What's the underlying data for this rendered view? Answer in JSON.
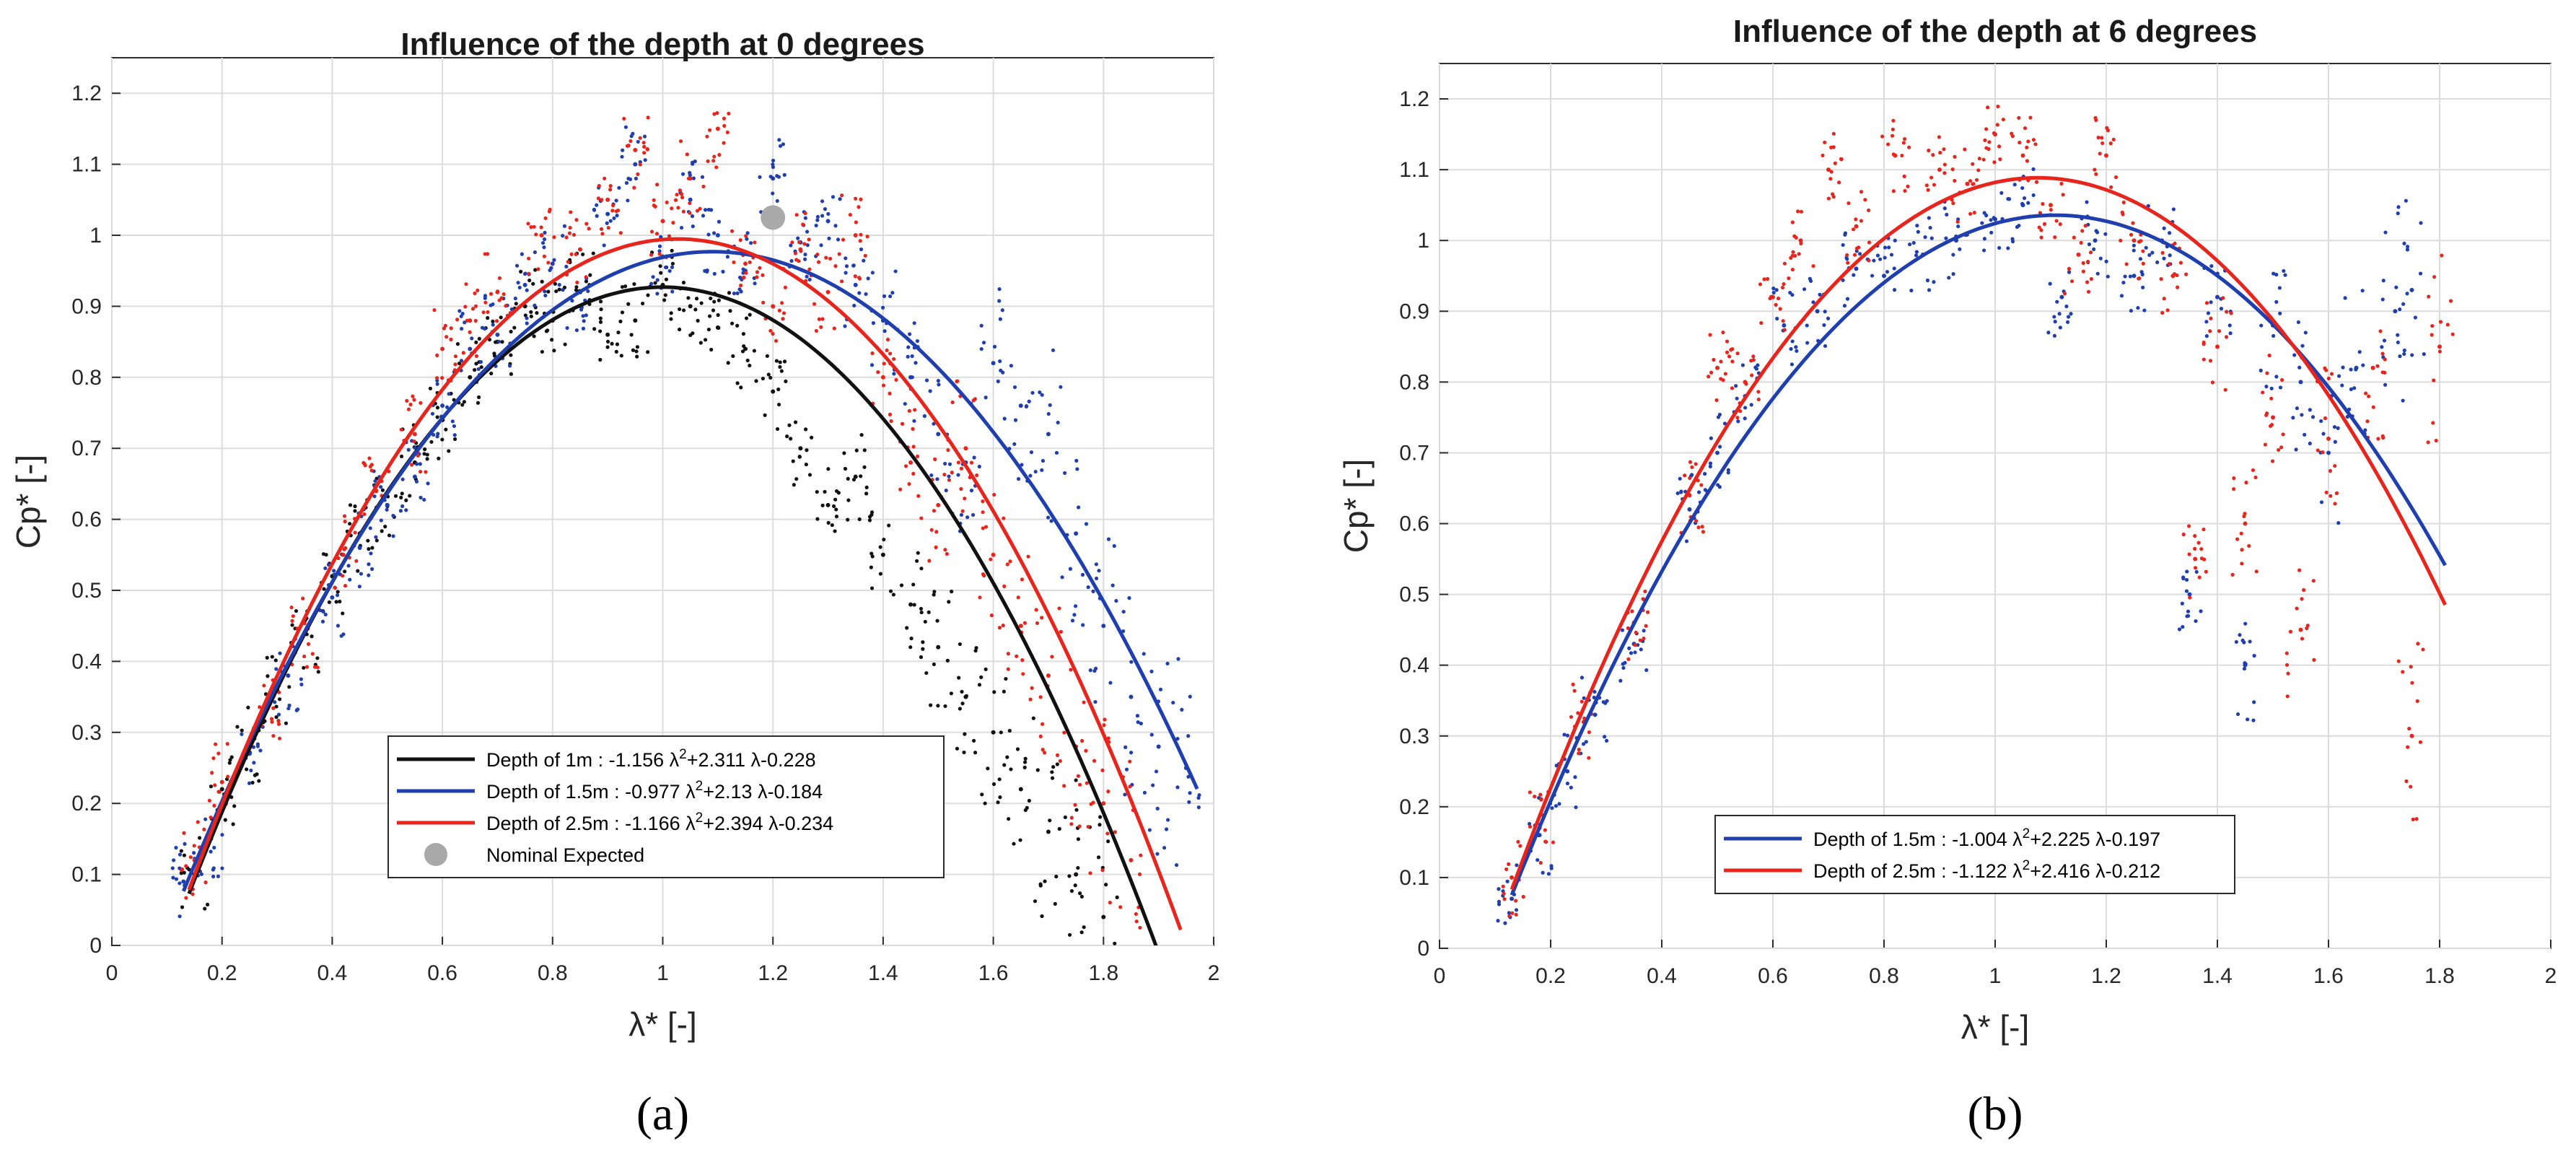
{
  "chart_data": [
    {
      "type": "scatter",
      "subfigure_label": "(a)",
      "title": "Influence of the depth at 0 degrees",
      "xlabel": "λ* [-]",
      "ylabel": "Cp* [-]",
      "xlim": [
        0,
        2
      ],
      "ylim": [
        0,
        1.25
      ],
      "xticks": [
        "0",
        "0.2",
        "0.4",
        "0.6",
        "0.8",
        "1",
        "1.2",
        "1.4",
        "1.6",
        "1.8",
        "2"
      ],
      "yticks": [
        "0",
        "0.1",
        "0.2",
        "0.3",
        "0.4",
        "0.5",
        "0.6",
        "0.7",
        "0.8",
        "0.9",
        "1",
        "1.1",
        "1.2"
      ],
      "grid": true,
      "legend_position": "bottom-right",
      "series": [
        {
          "name": "Depth of 1m",
          "label": "Depth of 1m : -1.156  λ²+2.311 λ-0.228",
          "color": "#111111",
          "fit": [
            -1.156,
            2.311,
            -0.228
          ],
          "x_range": [
            0.14,
            1.9
          ],
          "scatter": [
            [
              0.15,
              0.1
            ],
            [
              0.2,
              0.22
            ],
            [
              0.25,
              0.28
            ],
            [
              0.3,
              0.36
            ],
            [
              0.35,
              0.44
            ],
            [
              0.4,
              0.52
            ],
            [
              0.45,
              0.58
            ],
            [
              0.5,
              0.62
            ],
            [
              0.55,
              0.68
            ],
            [
              0.6,
              0.74
            ],
            [
              0.65,
              0.8
            ],
            [
              0.7,
              0.85
            ],
            [
              0.75,
              0.9
            ],
            [
              0.8,
              0.88
            ],
            [
              0.85,
              0.92
            ],
            [
              0.9,
              0.86
            ],
            [
              0.95,
              0.88
            ],
            [
              1.0,
              0.93
            ],
            [
              1.05,
              0.9
            ],
            [
              1.1,
              0.87
            ],
            [
              1.15,
              0.84
            ],
            [
              1.2,
              0.78
            ],
            [
              1.25,
              0.7
            ],
            [
              1.3,
              0.62
            ],
            [
              1.35,
              0.66
            ],
            [
              1.4,
              0.55
            ],
            [
              1.45,
              0.48
            ],
            [
              1.5,
              0.42
            ],
            [
              1.55,
              0.35
            ],
            [
              1.6,
              0.3
            ],
            [
              1.65,
              0.22
            ],
            [
              1.7,
              0.16
            ],
            [
              1.75,
              0.1
            ],
            [
              1.8,
              0.04
            ]
          ]
        },
        {
          "name": "Depth of 1.5m",
          "label": "Depth of 1.5m : -0.977  λ²+2.13 λ-0.184",
          "color": "#1f3fae",
          "fit": [
            -0.977,
            2.13,
            -0.184
          ],
          "x_range": [
            0.13,
            1.97
          ],
          "scatter": [
            [
              0.13,
              0.09
            ],
            [
              0.18,
              0.15
            ],
            [
              0.25,
              0.27
            ],
            [
              0.32,
              0.38
            ],
            [
              0.4,
              0.49
            ],
            [
              0.45,
              0.56
            ],
            [
              0.5,
              0.62
            ],
            [
              0.55,
              0.66
            ],
            [
              0.6,
              0.76
            ],
            [
              0.65,
              0.84
            ],
            [
              0.7,
              0.86
            ],
            [
              0.75,
              0.93
            ],
            [
              0.8,
              0.96
            ],
            [
              0.85,
              0.9
            ],
            [
              0.9,
              1.03
            ],
            [
              0.95,
              1.1
            ],
            [
              1.0,
              0.97
            ],
            [
              1.05,
              1.05
            ],
            [
              1.1,
              1.0
            ],
            [
              1.15,
              0.95
            ],
            [
              1.2,
              1.08
            ],
            [
              1.25,
              0.99
            ],
            [
              1.3,
              1.02
            ],
            [
              1.35,
              0.93
            ],
            [
              1.4,
              0.88
            ],
            [
              1.45,
              0.8
            ],
            [
              1.5,
              0.72
            ],
            [
              1.55,
              0.68
            ],
            [
              1.6,
              0.82
            ],
            [
              1.65,
              0.76
            ],
            [
              1.7,
              0.72
            ],
            [
              1.75,
              0.58
            ],
            [
              1.8,
              0.45
            ],
            [
              1.85,
              0.35
            ],
            [
              1.9,
              0.28
            ],
            [
              1.95,
              0.25
            ]
          ]
        },
        {
          "name": "Depth of 2.5m",
          "label": "Depth of 2.5m : -1.166  λ²+2.394 λ-0.234",
          "color": "#e8251c",
          "fit": [
            -1.166,
            2.394,
            -0.234
          ],
          "x_range": [
            0.14,
            1.94
          ],
          "scatter": [
            [
              0.15,
              0.12
            ],
            [
              0.2,
              0.23
            ],
            [
              0.28,
              0.33
            ],
            [
              0.35,
              0.44
            ],
            [
              0.42,
              0.55
            ],
            [
              0.48,
              0.64
            ],
            [
              0.55,
              0.72
            ],
            [
              0.6,
              0.84
            ],
            [
              0.65,
              0.88
            ],
            [
              0.7,
              0.92
            ],
            [
              0.78,
              1.0
            ],
            [
              0.85,
              0.98
            ],
            [
              0.9,
              1.05
            ],
            [
              0.95,
              1.12
            ],
            [
              1.0,
              1.02
            ],
            [
              1.05,
              1.08
            ],
            [
              1.1,
              1.15
            ],
            [
              1.15,
              0.96
            ],
            [
              1.2,
              0.9
            ],
            [
              1.25,
              0.98
            ],
            [
              1.3,
              0.92
            ],
            [
              1.35,
              1.0
            ],
            [
              1.4,
              0.8
            ],
            [
              1.45,
              0.68
            ],
            [
              1.5,
              0.62
            ],
            [
              1.55,
              0.7
            ],
            [
              1.6,
              0.55
            ],
            [
              1.65,
              0.45
            ],
            [
              1.7,
              0.38
            ],
            [
              1.75,
              0.28
            ],
            [
              1.8,
              0.2
            ],
            [
              1.85,
              0.12
            ]
          ]
        },
        {
          "name": "Nominal Expected",
          "label": "Nominal Expected",
          "color": "#a9a9a9",
          "marker_point": [
            1.2,
            1.025
          ]
        }
      ]
    },
    {
      "type": "scatter",
      "subfigure_label": "(b)",
      "title": "Influence of the depth at 6 degrees",
      "xlabel": "λ* [-]",
      "ylabel": "Cp* [-]",
      "xlim": [
        0,
        2
      ],
      "ylim": [
        0,
        1.25
      ],
      "xticks": [
        "0",
        "0.2",
        "0.4",
        "0.6",
        "0.8",
        "1",
        "1.2",
        "1.4",
        "1.6",
        "1.8",
        "2"
      ],
      "yticks": [
        "0",
        "0.1",
        "0.2",
        "0.3",
        "0.4",
        "0.5",
        "0.6",
        "0.7",
        "0.8",
        "0.9",
        "1",
        "1.1",
        "1.2"
      ],
      "grid": true,
      "legend_position": "bottom-center",
      "series": [
        {
          "name": "Depth of 1.5m",
          "label": "Depth of 1.5m : -1.004  λ²+2.225 λ-0.197",
          "color": "#1f3fae",
          "fit": [
            -1.004,
            2.225,
            -0.197
          ],
          "x_range": [
            0.13,
            1.81
          ],
          "scatter": [
            [
              0.13,
              0.07
            ],
            [
              0.18,
              0.16
            ],
            [
              0.23,
              0.25
            ],
            [
              0.28,
              0.33
            ],
            [
              0.35,
              0.43
            ],
            [
              0.45,
              0.62
            ],
            [
              0.5,
              0.7
            ],
            [
              0.55,
              0.78
            ],
            [
              0.62,
              0.88
            ],
            [
              0.68,
              0.9
            ],
            [
              0.75,
              0.96
            ],
            [
              0.8,
              0.95
            ],
            [
              0.87,
              0.98
            ],
            [
              0.93,
              1.0
            ],
            [
              1.0,
              1.03
            ],
            [
              1.05,
              1.05
            ],
            [
              1.12,
              0.92
            ],
            [
              1.18,
              1.0
            ],
            [
              1.25,
              0.95
            ],
            [
              1.3,
              1.0
            ],
            [
              1.35,
              0.5
            ],
            [
              1.4,
              0.92
            ],
            [
              1.45,
              0.4
            ],
            [
              1.5,
              0.88
            ],
            [
              1.55,
              0.8
            ],
            [
              1.6,
              0.7
            ],
            [
              1.65,
              0.82
            ],
            [
              1.72,
              0.9
            ],
            [
              1.75,
              0.93
            ]
          ]
        },
        {
          "name": "Depth of 2.5m",
          "label": "Depth of 2.5m : -1.122  λ²+2.416 λ-0.212",
          "color": "#e8251c",
          "fit": [
            -1.122,
            2.416,
            -0.212
          ],
          "x_range": [
            0.13,
            1.81
          ],
          "scatter": [
            [
              0.13,
              0.1
            ],
            [
              0.18,
              0.17
            ],
            [
              0.26,
              0.32
            ],
            [
              0.35,
              0.46
            ],
            [
              0.45,
              0.64
            ],
            [
              0.5,
              0.82
            ],
            [
              0.55,
              0.8
            ],
            [
              0.6,
              0.92
            ],
            [
              0.65,
              1.0
            ],
            [
              0.7,
              1.1
            ],
            [
              0.75,
              1.02
            ],
            [
              0.82,
              1.12
            ],
            [
              0.9,
              1.1
            ],
            [
              0.95,
              1.08
            ],
            [
              1.0,
              1.15
            ],
            [
              1.05,
              1.12
            ],
            [
              1.1,
              1.05
            ],
            [
              1.15,
              0.98
            ],
            [
              1.2,
              1.12
            ],
            [
              1.25,
              1.0
            ],
            [
              1.32,
              0.95
            ],
            [
              1.36,
              0.55
            ],
            [
              1.4,
              0.85
            ],
            [
              1.45,
              0.6
            ],
            [
              1.5,
              0.75
            ],
            [
              1.55,
              0.45
            ],
            [
              1.6,
              0.72
            ],
            [
              1.68,
              0.82
            ],
            [
              1.75,
              0.3
            ],
            [
              1.8,
              0.85
            ]
          ]
        }
      ]
    }
  ]
}
